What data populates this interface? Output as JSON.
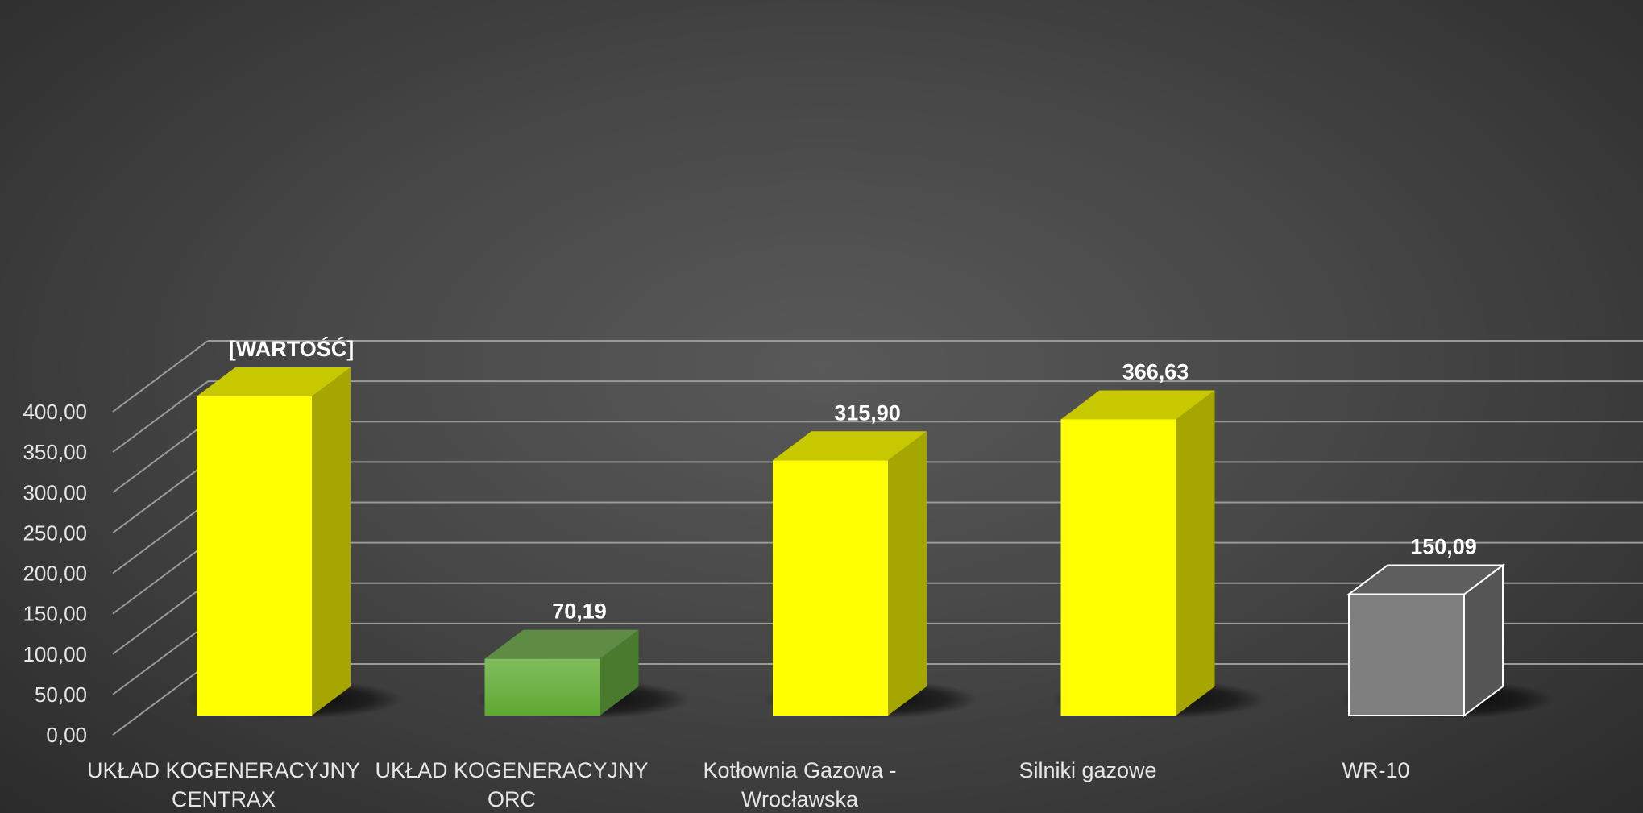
{
  "chart_data": {
    "type": "bar",
    "categories": [
      [
        "UKŁAD KOGENERACYJNY",
        "CENTRAX"
      ],
      [
        "UKŁAD KOGENERACYJNY",
        "ORC"
      ],
      [
        "Kotłownia Gazowa -",
        "Wrocławska"
      ],
      [
        "Silniki gazowe"
      ],
      [
        "WR-10"
      ]
    ],
    "values": [
      395.0,
      70.19,
      315.9,
      366.63,
      150.09
    ],
    "data_labels": [
      "[WARTOŚĆ]",
      "70,19",
      "315,90",
      "366,63",
      "150,09"
    ],
    "bar_styles": [
      "yellow",
      "green",
      "yellow",
      "yellow",
      "gray"
    ],
    "ylim": [
      0,
      400
    ],
    "y_ticks": [
      "0,00",
      "50,00",
      "100,00",
      "150,00",
      "200,00",
      "250,00",
      "300,00",
      "350,00",
      "400,00"
    ],
    "grid": true,
    "three_d": true,
    "title": "",
    "xlabel": "",
    "ylabel": ""
  },
  "colors": {
    "background": "#474747",
    "gridline": "#9a9a9a",
    "text": "#ffffff",
    "yellow": {
      "front": "#ffff00",
      "side": "#a6a600",
      "top": "#c8c800"
    },
    "green": {
      "front": "#6db33f",
      "side": "#4a7a2d",
      "top": "#5e8c44"
    },
    "gray": {
      "front": "#7f7f7f",
      "side": "#555555",
      "top": "#5e5e5e",
      "stroke": "#ffffff"
    }
  }
}
